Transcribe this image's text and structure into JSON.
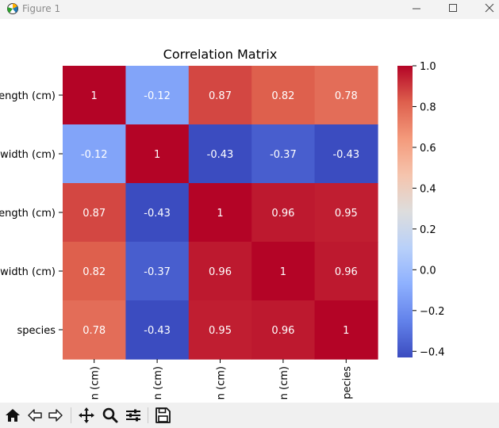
{
  "window": {
    "title": "Figure 1",
    "icon": "matplotlib-icon",
    "controls": [
      "minimize-icon",
      "maximize-icon",
      "close-icon"
    ]
  },
  "toolbar": {
    "buttons": [
      "home-icon",
      "back-icon",
      "forward-icon",
      "pan-icon",
      "zoom-icon",
      "configure-subplots-icon",
      "save-icon"
    ]
  },
  "chart_data": {
    "type": "heatmap",
    "title": "Correlation Matrix",
    "row_labels": [
      "ength (cm)",
      "width (cm)",
      "ength (cm)",
      "width (cm)",
      "species"
    ],
    "col_labels": [
      "n (cm)",
      "n (cm)",
      "n (cm)",
      "n (cm)",
      "pecies"
    ],
    "values": [
      [
        1,
        -0.12,
        0.87,
        0.82,
        0.78
      ],
      [
        -0.12,
        1,
        -0.43,
        -0.37,
        -0.43
      ],
      [
        0.87,
        -0.43,
        1,
        0.96,
        0.95
      ],
      [
        0.82,
        -0.37,
        0.96,
        1,
        0.96
      ],
      [
        0.78,
        -0.43,
        0.95,
        0.96,
        1
      ]
    ],
    "annotations": [
      [
        "1",
        "-0.12",
        "0.87",
        "0.82",
        "0.78"
      ],
      [
        "-0.12",
        "1",
        "-0.43",
        "-0.37",
        "-0.43"
      ],
      [
        "0.87",
        "-0.43",
        "1",
        "0.96",
        "0.95"
      ],
      [
        "0.82",
        "-0.37",
        "0.96",
        "1",
        "0.96"
      ],
      [
        "0.78",
        "-0.43",
        "0.95",
        "0.96",
        "1"
      ]
    ],
    "colormap": "coolwarm",
    "colorbar": {
      "vmin": -0.43,
      "vmax": 1.0,
      "ticks": [
        1.0,
        0.8,
        0.6,
        0.4,
        0.2,
        0.0,
        -0.2,
        -0.4
      ],
      "tick_labels": [
        "1.0",
        "0.8",
        "0.6",
        "0.4",
        "0.2",
        "0.0",
        "−0.2",
        "−0.4"
      ]
    },
    "grid": false
  }
}
